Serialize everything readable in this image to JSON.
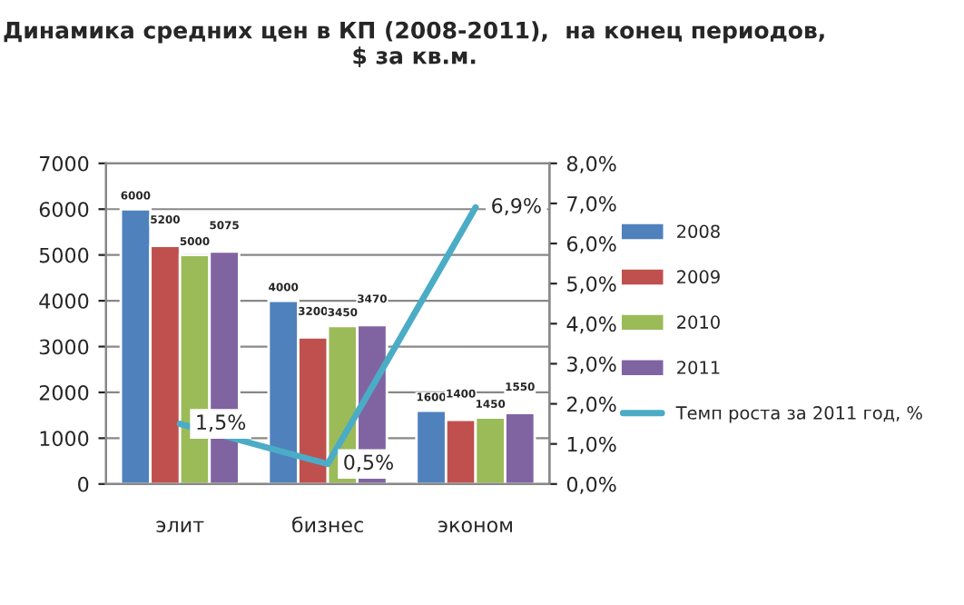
{
  "chart_data": {
    "type": "bar",
    "title": "Динамика средних цен в КП (2008-2011),  на конец периодов, $ за кв.м.",
    "categories": [
      "элит",
      "бизнес",
      "эконом"
    ],
    "series": [
      {
        "name": "2008",
        "color": "#4f81bd",
        "values": [
          6000,
          4000,
          1600
        ]
      },
      {
        "name": "2009",
        "color": "#c0504d",
        "values": [
          5200,
          3200,
          1400
        ]
      },
      {
        "name": "2010",
        "color": "#9bbb59",
        "values": [
          5000,
          3450,
          1450
        ]
      },
      {
        "name": "2011",
        "color": "#8064a2",
        "values": [
          5075,
          3470,
          1550
        ]
      },
      {
        "name": "Темп роста за 2011 год, %",
        "type": "line",
        "axis": "y2",
        "color": "#4bacc6",
        "values": [
          1.5,
          0.5,
          6.9
        ],
        "value_labels": [
          "1,5%",
          "0,5%",
          "6,9%"
        ]
      }
    ],
    "data_labels": true,
    "ylim": [
      0,
      7000
    ],
    "yticks": [
      0,
      1000,
      2000,
      3000,
      4000,
      5000,
      6000,
      7000
    ],
    "y2lim": [
      0,
      8
    ],
    "y2ticks": [
      {
        "value": 0,
        "label": "0,0%"
      },
      {
        "value": 1,
        "label": "1,0%"
      },
      {
        "value": 2,
        "label": "2,0%"
      },
      {
        "value": 3,
        "label": "3,0%"
      },
      {
        "value": 4,
        "label": "4,0%"
      },
      {
        "value": 5,
        "label": "5,0%"
      },
      {
        "value": 6,
        "label": "6,0%"
      },
      {
        "value": 7,
        "label": "7,0%"
      },
      {
        "value": 8,
        "label": "8,0%"
      }
    ],
    "grid": "y",
    "legend": "right"
  }
}
